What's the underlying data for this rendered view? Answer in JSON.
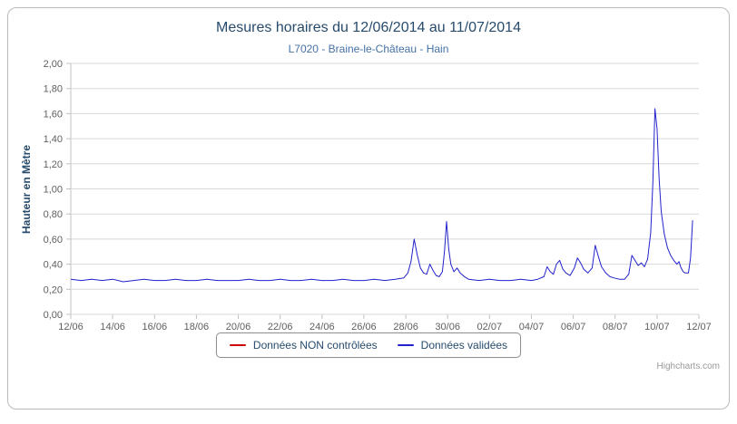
{
  "page": {
    "credits": "Highcharts.com"
  },
  "chart_data": {
    "type": "line",
    "title": "Mesures horaires du 12/06/2014 au 11/07/2014",
    "subtitle": "L7020 - Braine-le-Château - Hain",
    "xlabel": "",
    "ylabel": "Hauteur en Mètre",
    "ylim": [
      0,
      2
    ],
    "xlim_days": [
      0,
      30
    ],
    "grid": "horizontal",
    "legend_position": "bottom",
    "ytick_values": [
      0,
      0.2,
      0.4,
      0.6,
      0.8,
      1.0,
      1.2,
      1.4,
      1.6,
      1.8,
      2.0
    ],
    "ytick_labels": [
      "0,00",
      "0,20",
      "0,40",
      "0,60",
      "0,80",
      "1,00",
      "1,20",
      "1,40",
      "1,60",
      "1,80",
      "2,00"
    ],
    "xtick_values": [
      0,
      2,
      4,
      6,
      8,
      10,
      12,
      14,
      16,
      18,
      20,
      22,
      24,
      26,
      28,
      30
    ],
    "xtick_labels": [
      "12/06",
      "14/06",
      "16/06",
      "18/06",
      "20/06",
      "22/06",
      "24/06",
      "26/06",
      "28/06",
      "30/06",
      "02/07",
      "04/07",
      "06/07",
      "08/07",
      "10/07",
      "12/07"
    ],
    "series": [
      {
        "name": "Données NON contrôlées",
        "color": "#cc0000",
        "points": []
      },
      {
        "name": "Données validées",
        "color": "#2222cc",
        "points": [
          [
            0,
            0.28
          ],
          [
            0.5,
            0.27
          ],
          [
            1,
            0.28
          ],
          [
            1.5,
            0.27
          ],
          [
            2,
            0.28
          ],
          [
            2.5,
            0.26
          ],
          [
            3,
            0.27
          ],
          [
            3.5,
            0.28
          ],
          [
            4,
            0.27
          ],
          [
            4.5,
            0.27
          ],
          [
            5,
            0.28
          ],
          [
            5.5,
            0.27
          ],
          [
            6,
            0.27
          ],
          [
            6.5,
            0.28
          ],
          [
            7,
            0.27
          ],
          [
            7.5,
            0.27
          ],
          [
            8,
            0.27
          ],
          [
            8.5,
            0.28
          ],
          [
            9,
            0.27
          ],
          [
            9.5,
            0.27
          ],
          [
            10,
            0.28
          ],
          [
            10.5,
            0.27
          ],
          [
            11,
            0.27
          ],
          [
            11.5,
            0.28
          ],
          [
            12,
            0.27
          ],
          [
            12.5,
            0.27
          ],
          [
            13,
            0.28
          ],
          [
            13.5,
            0.27
          ],
          [
            14,
            0.27
          ],
          [
            14.5,
            0.28
          ],
          [
            15,
            0.27
          ],
          [
            15.5,
            0.28
          ],
          [
            15.9,
            0.29
          ],
          [
            16.1,
            0.33
          ],
          [
            16.25,
            0.42
          ],
          [
            16.4,
            0.6
          ],
          [
            16.55,
            0.47
          ],
          [
            16.7,
            0.37
          ],
          [
            16.85,
            0.33
          ],
          [
            17,
            0.32
          ],
          [
            17.15,
            0.4
          ],
          [
            17.3,
            0.35
          ],
          [
            17.45,
            0.31
          ],
          [
            17.6,
            0.3
          ],
          [
            17.75,
            0.34
          ],
          [
            17.85,
            0.5
          ],
          [
            17.95,
            0.74
          ],
          [
            18.05,
            0.52
          ],
          [
            18.15,
            0.4
          ],
          [
            18.3,
            0.34
          ],
          [
            18.45,
            0.37
          ],
          [
            18.6,
            0.33
          ],
          [
            18.8,
            0.3
          ],
          [
            19,
            0.28
          ],
          [
            19.5,
            0.27
          ],
          [
            20,
            0.28
          ],
          [
            20.5,
            0.27
          ],
          [
            21,
            0.27
          ],
          [
            21.5,
            0.28
          ],
          [
            22,
            0.27
          ],
          [
            22.3,
            0.28
          ],
          [
            22.6,
            0.3
          ],
          [
            22.75,
            0.38
          ],
          [
            22.9,
            0.34
          ],
          [
            23.05,
            0.32
          ],
          [
            23.2,
            0.4
          ],
          [
            23.35,
            0.43
          ],
          [
            23.5,
            0.36
          ],
          [
            23.65,
            0.33
          ],
          [
            23.85,
            0.31
          ],
          [
            24.05,
            0.37
          ],
          [
            24.2,
            0.45
          ],
          [
            24.35,
            0.41
          ],
          [
            24.5,
            0.36
          ],
          [
            24.7,
            0.33
          ],
          [
            24.9,
            0.37
          ],
          [
            25.05,
            0.55
          ],
          [
            25.2,
            0.46
          ],
          [
            25.35,
            0.38
          ],
          [
            25.55,
            0.33
          ],
          [
            25.75,
            0.3
          ],
          [
            25.95,
            0.29
          ],
          [
            26.2,
            0.28
          ],
          [
            26.45,
            0.28
          ],
          [
            26.65,
            0.32
          ],
          [
            26.8,
            0.47
          ],
          [
            26.95,
            0.43
          ],
          [
            27.1,
            0.39
          ],
          [
            27.25,
            0.41
          ],
          [
            27.4,
            0.38
          ],
          [
            27.55,
            0.44
          ],
          [
            27.7,
            0.65
          ],
          [
            27.8,
            1.05
          ],
          [
            27.9,
            1.64
          ],
          [
            28,
            1.48
          ],
          [
            28.1,
            1.08
          ],
          [
            28.2,
            0.82
          ],
          [
            28.35,
            0.64
          ],
          [
            28.5,
            0.53
          ],
          [
            28.65,
            0.47
          ],
          [
            28.8,
            0.43
          ],
          [
            28.95,
            0.4
          ],
          [
            29.05,
            0.42
          ],
          [
            29.15,
            0.37
          ],
          [
            29.25,
            0.34
          ],
          [
            29.35,
            0.33
          ],
          [
            29.5,
            0.33
          ],
          [
            29.6,
            0.45
          ],
          [
            29.7,
            0.75
          ]
        ]
      }
    ]
  }
}
